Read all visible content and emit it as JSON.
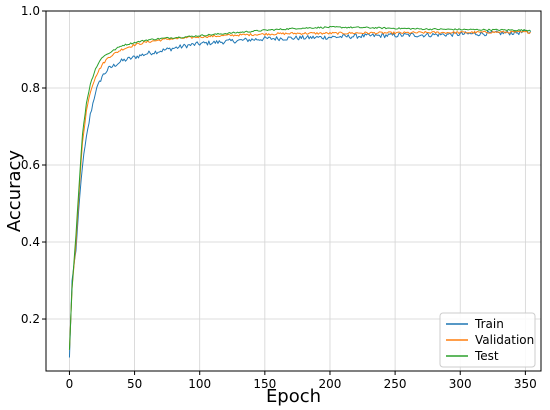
{
  "chart_data": {
    "type": "line",
    "title": "",
    "xlabel": "Epoch",
    "ylabel": "Accuracy",
    "xlim": [
      -18,
      362
    ],
    "ylim": [
      0.065,
      1.0
    ],
    "xticks": [
      0,
      50,
      100,
      150,
      200,
      250,
      300,
      350
    ],
    "xtick_labels": [
      "0",
      "50",
      "100",
      "150",
      "200",
      "250",
      "300",
      "350"
    ],
    "yticks": [
      0.2,
      0.4,
      0.6,
      0.8,
      1.0
    ],
    "ytick_labels": [
      "0.2",
      "0.4",
      "0.6",
      "0.8",
      "1.0"
    ],
    "grid": true,
    "legend_position": "bottom-right",
    "n_points": 355,
    "series": [
      {
        "name": "Train",
        "color": "#1f77b4",
        "x": [
          0,
          2,
          5,
          8,
          10,
          13,
          16,
          20,
          25,
          30,
          40,
          50,
          60,
          75,
          90,
          100,
          125,
          150,
          175,
          200,
          225,
          250,
          275,
          300,
          325,
          353
        ],
        "y": [
          0.1,
          0.3,
          0.38,
          0.52,
          0.6,
          0.67,
          0.73,
          0.79,
          0.83,
          0.85,
          0.87,
          0.88,
          0.89,
          0.9,
          0.91,
          0.915,
          0.922,
          0.928,
          0.93,
          0.932,
          0.935,
          0.937,
          0.938,
          0.94,
          0.942,
          0.945
        ]
      },
      {
        "name": "Validation",
        "color": "#ff7f0e",
        "x": [
          0,
          2,
          5,
          8,
          10,
          13,
          16,
          20,
          25,
          30,
          40,
          50,
          60,
          75,
          90,
          100,
          125,
          150,
          175,
          200,
          225,
          250,
          275,
          300,
          325,
          353
        ],
        "y": [
          0.12,
          0.28,
          0.4,
          0.56,
          0.66,
          0.74,
          0.79,
          0.83,
          0.86,
          0.88,
          0.9,
          0.912,
          0.92,
          0.927,
          0.93,
          0.933,
          0.937,
          0.94,
          0.942,
          0.942,
          0.943,
          0.943,
          0.944,
          0.944,
          0.945,
          0.945
        ]
      },
      {
        "name": "Test",
        "color": "#2ca02c",
        "x": [
          0,
          2,
          5,
          8,
          10,
          13,
          16,
          20,
          25,
          30,
          40,
          50,
          60,
          75,
          90,
          100,
          125,
          150,
          175,
          200,
          225,
          250,
          275,
          300,
          325,
          353
        ],
        "y": [
          0.12,
          0.28,
          0.42,
          0.58,
          0.68,
          0.76,
          0.81,
          0.85,
          0.88,
          0.89,
          0.91,
          0.918,
          0.925,
          0.93,
          0.933,
          0.936,
          0.943,
          0.95,
          0.955,
          0.958,
          0.957,
          0.955,
          0.953,
          0.952,
          0.951,
          0.95
        ]
      }
    ]
  }
}
